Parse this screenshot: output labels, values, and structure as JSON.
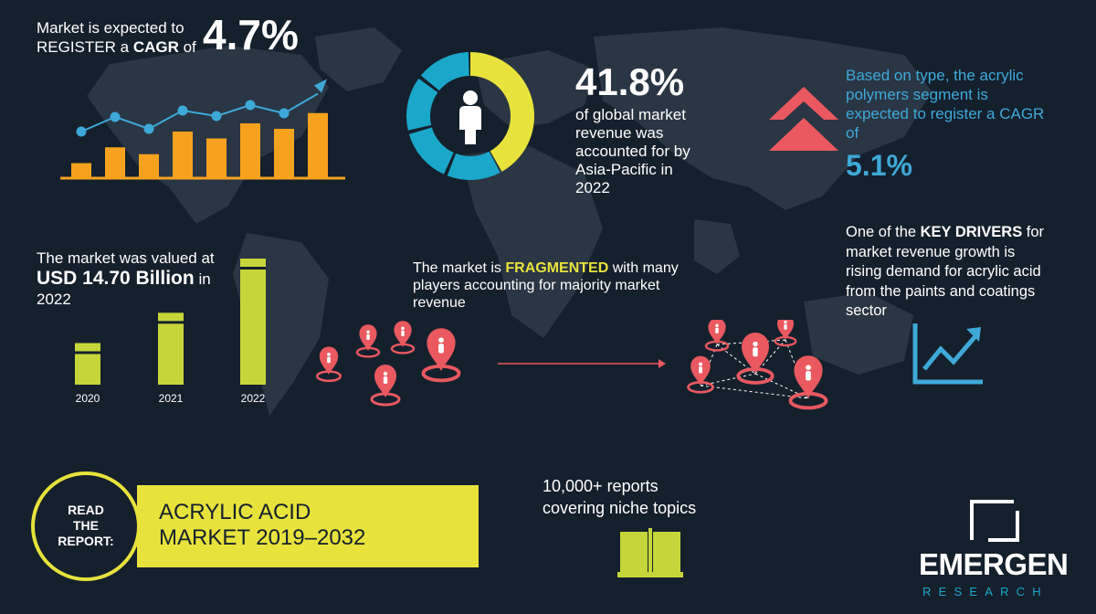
{
  "colors": {
    "background": "#15202d",
    "map": "#2a3644",
    "orange": "#f7a21f",
    "blue": "#3ea9d8",
    "yellow_green": "#c6d63a",
    "yellow": "#e8e23c",
    "red": "#e9595f",
    "cyan": "#1aa7c9",
    "white": "#ffffff"
  },
  "cagr_block": {
    "line1": "Market is expected to",
    "line2_prefix": "REGISTER a ",
    "line2_bold": "CAGR",
    "line2_suffix": " of",
    "value": "4.7%",
    "chart_data": {
      "type": "bar",
      "bars": [
        0.22,
        0.45,
        0.35,
        0.68,
        0.58,
        0.8,
        0.72,
        0.95
      ],
      "trend": [
        0.42,
        0.74,
        0.48,
        0.88,
        0.76,
        1.0,
        0.82,
        1.25
      ]
    }
  },
  "asia_block": {
    "value": "41.8%",
    "lines": [
      "of global market",
      "revenue was",
      "accounted for by",
      "Asia-Pacific in",
      "2022"
    ],
    "donut_share": 0.418,
    "icon": "person-icon"
  },
  "type_block": {
    "lines": [
      "Based on type, the acrylic",
      "polymers segment is",
      "expected to register a CAGR",
      "of"
    ],
    "value": "5.1%",
    "icon": "double-chevron-up-icon"
  },
  "value_block": {
    "line1": "The market was valued at",
    "line2_bold": "USD 14.70 Billion",
    "line2_suffix": " in",
    "line3": "2022",
    "chart_data": {
      "type": "bar",
      "categories": [
        "2020",
        "2021",
        "2022"
      ],
      "values": [
        0.33,
        0.57,
        1.0
      ]
    }
  },
  "fragmented_block": {
    "line1_prefix": "The market is ",
    "line1_highlight": "FRAGMENTED",
    "line1_suffix": " with many",
    "line2": "players accounting for majority market",
    "line3": "revenue"
  },
  "drivers_block": {
    "line1_prefix": "One of the ",
    "line1_bold": "KEY DRIVERS",
    "line1_suffix": " for",
    "lines": [
      "market revenue growth is",
      "rising demand for acrylic acid",
      "from the paints and coatings",
      "sector"
    ],
    "icon": "growth-chart-icon"
  },
  "report_block": {
    "circle_lines": [
      "READ",
      "THE",
      "REPORT:"
    ],
    "title_lines": [
      "ACRYLIC ACID",
      "MARKET 2019–2032"
    ]
  },
  "reports_block": {
    "line1": "10,000+ reports",
    "line2": "covering niche topics",
    "icon": "open-book-icon"
  },
  "logo": {
    "word": "EMERGEN",
    "sub": "RESEARCH"
  }
}
